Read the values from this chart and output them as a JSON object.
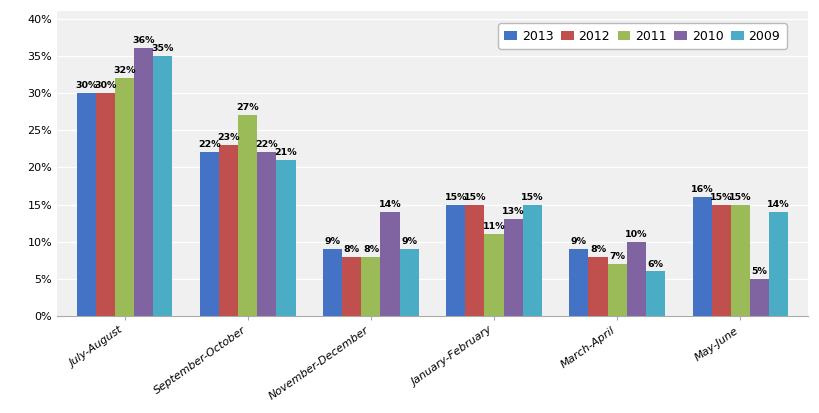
{
  "categories": [
    "July-August",
    "September-October",
    "November-December",
    "January-February",
    "March-April",
    "May-June"
  ],
  "series": {
    "2013": [
      30,
      22,
      9,
      15,
      9,
      16
    ],
    "2012": [
      30,
      23,
      8,
      15,
      8,
      15
    ],
    "2011": [
      32,
      27,
      8,
      11,
      7,
      15
    ],
    "2010": [
      36,
      22,
      14,
      13,
      10,
      5
    ],
    "2009": [
      35,
      21,
      9,
      15,
      6,
      14
    ]
  },
  "colors": {
    "2013": "#4472C4",
    "2012": "#C0504D",
    "2011": "#9BBB59",
    "2010": "#8064A2",
    "2009": "#4BACC6"
  },
  "years": [
    "2013",
    "2012",
    "2011",
    "2010",
    "2009"
  ],
  "ylim": [
    0,
    40
  ],
  "yticks": [
    0,
    5,
    10,
    15,
    20,
    25,
    30,
    35,
    40
  ],
  "bar_width": 0.155,
  "label_fontsize": 6.8,
  "legend_fontsize": 9,
  "tick_fontsize": 8,
  "background_color": "#FFFFFF",
  "plot_bg_color": "#F0F0F0",
  "grid_color": "#FFFFFF"
}
